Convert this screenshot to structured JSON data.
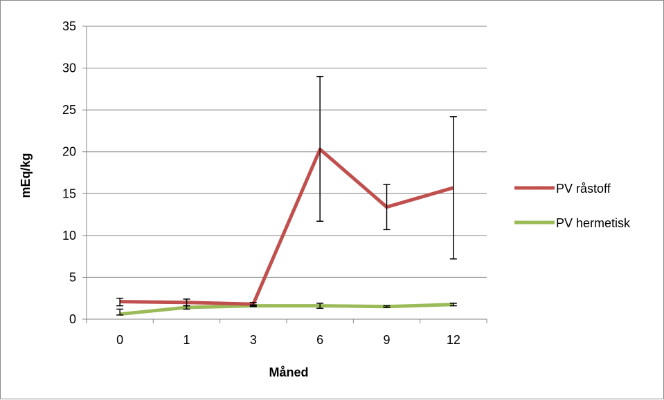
{
  "chart_data": {
    "type": "line",
    "xlabel": "Måned",
    "ylabel": "mEq/kg",
    "categories": [
      "0",
      "1",
      "3",
      "6",
      "9",
      "12"
    ],
    "ylim": [
      0,
      35
    ],
    "y_ticks": [
      "0",
      "5",
      "10",
      "15",
      "20",
      "25",
      "30",
      "35"
    ],
    "grid": "horizontal",
    "legend_position": "right",
    "series": [
      {
        "name": "PV råstoff",
        "color": "#c0504d",
        "values": [
          2.1,
          2.0,
          1.8,
          20.3,
          13.4,
          15.7
        ],
        "error_low": [
          1.6,
          1.6,
          1.6,
          11.7,
          10.7,
          7.2
        ],
        "error_high": [
          2.5,
          2.4,
          2.0,
          29.0,
          16.1,
          24.2
        ]
      },
      {
        "name": "PV hermetisk",
        "color": "#9bbb59",
        "values": [
          0.6,
          1.4,
          1.6,
          1.6,
          1.5,
          1.75
        ],
        "error_low": [
          0.5,
          1.2,
          1.5,
          1.3,
          1.4,
          1.6
        ],
        "error_high": [
          1.2,
          1.6,
          1.7,
          1.9,
          1.6,
          1.9
        ]
      }
    ]
  }
}
